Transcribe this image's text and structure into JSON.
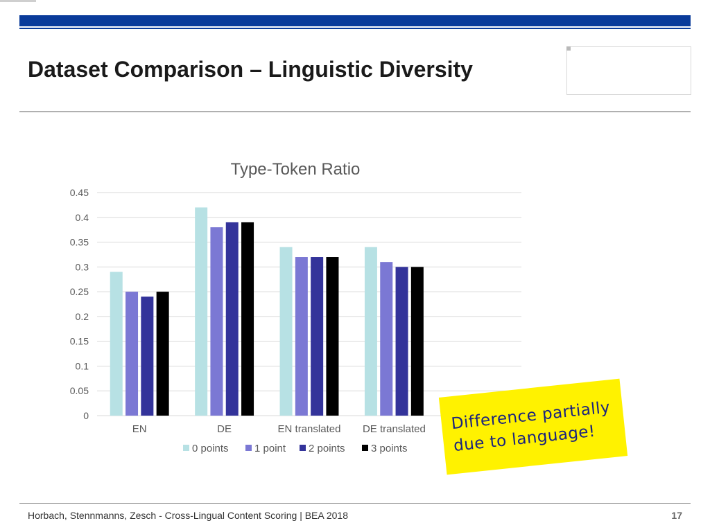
{
  "slide": {
    "title": "Dataset Comparison – Linguistic Diversity",
    "footer": "Horbach, Stennmanns, Zesch - Cross-Lingual Content Scoring | BEA 2018",
    "page_number": "17",
    "callout_line1": "Difference partially",
    "callout_line2": "due to language!"
  },
  "colors": {
    "series": [
      "#b7e1e4",
      "#7b78d4",
      "#33339a",
      "#000000"
    ],
    "grid": "#d9d9d9",
    "tick": "#595959",
    "brand": "#0a3b9a",
    "callout": "#fff200"
  },
  "chart_data": {
    "type": "bar",
    "title": "Type-Token Ratio",
    "categories": [
      "EN",
      "DE",
      "EN translated",
      "DE translated"
    ],
    "series": [
      {
        "name": "0 points",
        "values": [
          0.29,
          0.42,
          0.34,
          0.34
        ]
      },
      {
        "name": "1 point",
        "values": [
          0.25,
          0.38,
          0.32,
          0.31
        ]
      },
      {
        "name": "2 points",
        "values": [
          0.24,
          0.39,
          0.32,
          0.3
        ]
      },
      {
        "name": "3 points",
        "values": [
          0.25,
          0.39,
          0.32,
          0.3
        ]
      }
    ],
    "yticks": [
      "0",
      "0.05",
      "0.1",
      "0.15",
      "0.2",
      "0.25",
      "0.3",
      "0.35",
      "0.4",
      "0.45"
    ],
    "ylim": [
      0,
      0.45
    ],
    "grid": true,
    "legend": "bottom"
  }
}
